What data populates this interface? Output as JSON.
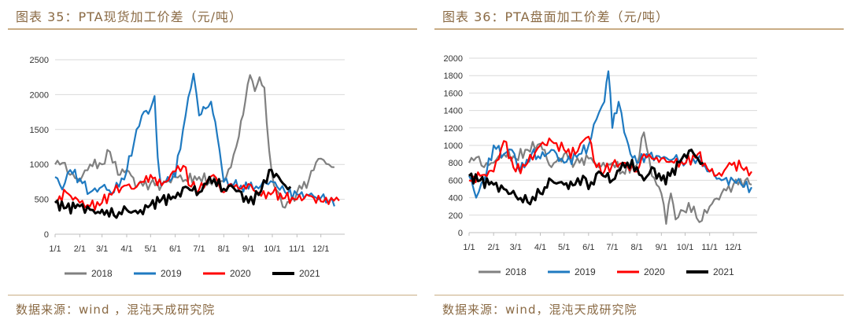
{
  "charts": [
    {
      "title": "图表 35：PTA现货加工价差（元/吨）",
      "source": "数据来源：wind ，混沌天成研究院"
    },
    {
      "title": "图表 36：PTA盘面加工价差（元/吨）",
      "source": "数据来源：wind，混沌天成研究院"
    }
  ],
  "chart_data": [
    {
      "type": "line",
      "title": "",
      "xlabel": "",
      "ylabel": "",
      "ylim": [
        0,
        2500
      ],
      "yticks": [
        0,
        500,
        1000,
        1500,
        2000,
        2500
      ],
      "x_ticks": [
        "1/1",
        "2/1",
        "3/1",
        "4/1",
        "5/1",
        "6/1",
        "7/1",
        "8/1",
        "9/1",
        "10/1",
        "11/1",
        "12/1"
      ],
      "x_tick_positions": [
        1,
        32,
        60,
        91,
        121,
        152,
        182,
        213,
        244,
        274,
        305,
        335
      ],
      "xlim": [
        1,
        365
      ],
      "grid": "horizontal",
      "legend_position": "bottom",
      "series": [
        {
          "name": "2018",
          "color": "#808080",
          "points": [
            [
              1,
              1000
            ],
            [
              10,
              1020
            ],
            [
              20,
              850
            ],
            [
              32,
              760
            ],
            [
              45,
              1000
            ],
            [
              60,
              1000
            ],
            [
              70,
              1180
            ],
            [
              80,
              850
            ],
            [
              91,
              920
            ],
            [
              105,
              700
            ],
            [
              121,
              730
            ],
            [
              135,
              700
            ],
            [
              152,
              820
            ],
            [
              165,
              780
            ],
            [
              182,
              820
            ],
            [
              195,
              750
            ],
            [
              213,
              760
            ],
            [
              222,
              960
            ],
            [
              232,
              1400
            ],
            [
              240,
              1900
            ],
            [
              246,
              2280
            ],
            [
              252,
              2050
            ],
            [
              258,
              2250
            ],
            [
              264,
              2100
            ],
            [
              270,
              1200
            ],
            [
              276,
              700
            ],
            [
              290,
              380
            ],
            [
              305,
              600
            ],
            [
              320,
              780
            ],
            [
              332,
              1080
            ],
            [
              345,
              1000
            ],
            [
              352,
              960
            ]
          ]
        },
        {
          "name": "2019",
          "color": "#1f7ac1",
          "points": [
            [
              1,
              820
            ],
            [
              10,
              640
            ],
            [
              20,
              920
            ],
            [
              32,
              800
            ],
            [
              45,
              600
            ],
            [
              60,
              680
            ],
            [
              75,
              600
            ],
            [
              91,
              900
            ],
            [
              100,
              1300
            ],
            [
              110,
              1700
            ],
            [
              121,
              1800
            ],
            [
              126,
              1980
            ],
            [
              130,
              1100
            ],
            [
              134,
              700
            ],
            [
              140,
              750
            ],
            [
              148,
              800
            ],
            [
              152,
              820
            ],
            [
              165,
              1700
            ],
            [
              175,
              2300
            ],
            [
              182,
              1700
            ],
            [
              190,
              1800
            ],
            [
              197,
              1900
            ],
            [
              205,
              1400
            ],
            [
              213,
              750
            ],
            [
              225,
              700
            ],
            [
              244,
              650
            ],
            [
              260,
              700
            ],
            [
              272,
              760
            ],
            [
              280,
              680
            ],
            [
              290,
              600
            ],
            [
              305,
              570
            ],
            [
              320,
              560
            ],
            [
              335,
              520
            ],
            [
              345,
              470
            ],
            [
              352,
              400
            ]
          ]
        },
        {
          "name": "2020",
          "color": "#ff0000",
          "points": [
            [
              1,
              460
            ],
            [
              15,
              600
            ],
            [
              32,
              450
            ],
            [
              45,
              400
            ],
            [
              60,
              450
            ],
            [
              75,
              620
            ],
            [
              91,
              700
            ],
            [
              100,
              650
            ],
            [
              110,
              750
            ],
            [
              121,
              850
            ],
            [
              135,
              700
            ],
            [
              152,
              900
            ],
            [
              162,
              980
            ],
            [
              172,
              680
            ],
            [
              182,
              640
            ],
            [
              200,
              850
            ],
            [
              213,
              600
            ],
            [
              222,
              720
            ],
            [
              232,
              650
            ],
            [
              244,
              720
            ],
            [
              260,
              550
            ],
            [
              275,
              600
            ],
            [
              290,
              520
            ],
            [
              305,
              500
            ],
            [
              320,
              550
            ],
            [
              335,
              470
            ],
            [
              348,
              520
            ],
            [
              358,
              480
            ]
          ]
        },
        {
          "name": "2021",
          "color": "#000000",
          "points": [
            [
              1,
              450
            ],
            [
              15,
              380
            ],
            [
              32,
              400
            ],
            [
              45,
              350
            ],
            [
              55,
              320
            ],
            [
              60,
              350
            ],
            [
              75,
              270
            ],
            [
              91,
              350
            ],
            [
              105,
              300
            ],
            [
              121,
              420
            ],
            [
              135,
              500
            ],
            [
              152,
              520
            ],
            [
              165,
              680
            ],
            [
              182,
              600
            ],
            [
              195,
              820
            ],
            [
              213,
              650
            ],
            [
              222,
              700
            ],
            [
              232,
              620
            ],
            [
              244,
              450
            ],
            [
              260,
              620
            ],
            [
              270,
              920
            ],
            [
              282,
              820
            ],
            [
              290,
              700
            ],
            [
              297,
              680
            ]
          ]
        }
      ]
    },
    {
      "type": "line",
      "title": "",
      "xlabel": "",
      "ylabel": "",
      "ylim": [
        0,
        2000
      ],
      "yticks": [
        0,
        200,
        400,
        600,
        800,
        1000,
        1200,
        1400,
        1600,
        1800,
        2000
      ],
      "x_ticks": [
        "1/1",
        "2/1",
        "3/1",
        "4/1",
        "5/1",
        "6/1",
        "7/1",
        "8/1",
        "9/1",
        "10/1",
        "11/1",
        "12/1"
      ],
      "x_tick_positions": [
        1,
        32,
        60,
        91,
        121,
        152,
        182,
        213,
        244,
        274,
        305,
        335
      ],
      "xlim": [
        1,
        365
      ],
      "grid": "horizontal",
      "legend_position": "bottom",
      "series": [
        {
          "name": "2018",
          "color": "#808080",
          "points": [
            [
              1,
              800
            ],
            [
              10,
              860
            ],
            [
              20,
              750
            ],
            [
              32,
              800
            ],
            [
              45,
              900
            ],
            [
              60,
              850
            ],
            [
              75,
              950
            ],
            [
              91,
              1020
            ],
            [
              105,
              750
            ],
            [
              121,
              900
            ],
            [
              135,
              800
            ],
            [
              152,
              850
            ],
            [
              165,
              750
            ],
            [
              182,
              800
            ],
            [
              195,
              700
            ],
            [
              213,
              780
            ],
            [
              222,
              1150
            ],
            [
              232,
              650
            ],
            [
              244,
              450
            ],
            [
              250,
              100
            ],
            [
              256,
              450
            ],
            [
              262,
              150
            ],
            [
              272,
              250
            ],
            [
              285,
              300
            ],
            [
              292,
              120
            ],
            [
              305,
              300
            ],
            [
              320,
              450
            ],
            [
              335,
              550
            ],
            [
              350,
              600
            ],
            [
              358,
              550
            ]
          ]
        },
        {
          "name": "2019",
          "color": "#1f7ac1",
          "points": [
            [
              1,
              650
            ],
            [
              10,
              400
            ],
            [
              20,
              600
            ],
            [
              32,
              1000
            ],
            [
              45,
              900
            ],
            [
              55,
              950
            ],
            [
              65,
              700
            ],
            [
              80,
              900
            ],
            [
              91,
              850
            ],
            [
              105,
              950
            ],
            [
              121,
              800
            ],
            [
              140,
              900
            ],
            [
              152,
              1000
            ],
            [
              162,
              1300
            ],
            [
              172,
              1500
            ],
            [
              177,
              1850
            ],
            [
              182,
              1200
            ],
            [
              190,
              1500
            ],
            [
              197,
              1150
            ],
            [
              205,
              900
            ],
            [
              213,
              800
            ],
            [
              225,
              900
            ],
            [
              244,
              850
            ],
            [
              260,
              850
            ],
            [
              275,
              800
            ],
            [
              290,
              850
            ],
            [
              305,
              700
            ],
            [
              320,
              600
            ],
            [
              335,
              600
            ],
            [
              345,
              550
            ],
            [
              358,
              520
            ]
          ]
        },
        {
          "name": "2020",
          "color": "#ff0000",
          "points": [
            [
              1,
              600
            ],
            [
              15,
              650
            ],
            [
              32,
              700
            ],
            [
              45,
              1050
            ],
            [
              60,
              700
            ],
            [
              75,
              800
            ],
            [
              91,
              1000
            ],
            [
              105,
              1050
            ],
            [
              121,
              950
            ],
            [
              135,
              900
            ],
            [
              145,
              1050
            ],
            [
              152,
              1100
            ],
            [
              162,
              750
            ],
            [
              172,
              700
            ],
            [
              182,
              780
            ],
            [
              195,
              800
            ],
            [
              213,
              700
            ],
            [
              222,
              900
            ],
            [
              232,
              850
            ],
            [
              244,
              850
            ],
            [
              260,
              800
            ],
            [
              275,
              800
            ],
            [
              290,
              900
            ],
            [
              305,
              700
            ],
            [
              320,
              650
            ],
            [
              330,
              800
            ],
            [
              345,
              750
            ],
            [
              358,
              700
            ]
          ]
        },
        {
          "name": "2021",
          "color": "#000000",
          "points": [
            [
              1,
              650
            ],
            [
              15,
              600
            ],
            [
              32,
              550
            ],
            [
              45,
              500
            ],
            [
              60,
              420
            ],
            [
              75,
              350
            ],
            [
              91,
              450
            ],
            [
              105,
              600
            ],
            [
              121,
              550
            ],
            [
              135,
              550
            ],
            [
              145,
              650
            ],
            [
              152,
              500
            ],
            [
              165,
              700
            ],
            [
              182,
              600
            ],
            [
              195,
              800
            ],
            [
              213,
              750
            ],
            [
              222,
              600
            ],
            [
              232,
              750
            ],
            [
              244,
              600
            ],
            [
              255,
              650
            ],
            [
              270,
              850
            ],
            [
              282,
              950
            ],
            [
              290,
              850
            ],
            [
              297,
              800
            ]
          ]
        }
      ]
    }
  ]
}
